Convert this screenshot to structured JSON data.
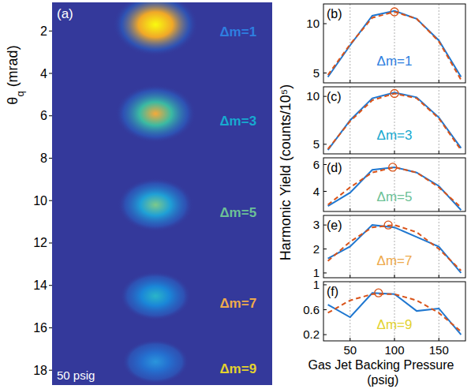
{
  "chart_data": [
    {
      "type": "image",
      "title": "(a)",
      "ylabel": "θq (mrad)",
      "ylim": [
        0.65,
        18.7
      ],
      "yticks": [
        2,
        4,
        6,
        8,
        10,
        12,
        14,
        16,
        18
      ],
      "labels": [
        "Δm=1",
        "Δm=3",
        "Δm=5",
        "Δm=7",
        "Δm=9"
      ],
      "values": [
        1.7,
        5.9,
        10.2,
        14.5,
        17.6
      ],
      "colors": [
        "#2e7fe0",
        "#17a9cf",
        "#6cc196",
        "#eeaa4c",
        "#e3d22e"
      ],
      "annotation": "50 psig"
    },
    {
      "type": "line",
      "title": "(b)",
      "annotation": "Δm=1",
      "color": "#2e7fe0",
      "x": [
        25,
        50,
        75,
        100,
        125,
        150,
        175
      ],
      "xlim": [
        20,
        180
      ],
      "xticks": [
        50,
        100,
        150
      ],
      "ylim": [
        4,
        12
      ],
      "yticks": [
        5,
        10
      ],
      "grid": true,
      "tick_labels": "y",
      "series": [
        {
          "values": [
            4.6,
            7.8,
            10.8,
            11.3,
            10.5,
            8.3,
            4.6
          ],
          "color": "#1f77d0",
          "line_style": "solid"
        },
        {
          "values": [
            4.8,
            7.9,
            10.6,
            11.2,
            10.5,
            8.2,
            4.3
          ],
          "color": "#d95319",
          "line_style": "dashed"
        }
      ],
      "peak": {
        "x": 100,
        "y": 11.2
      }
    },
    {
      "type": "line",
      "title": "(c)",
      "annotation": "Δm=3",
      "color": "#17a9cf",
      "x": [
        25,
        50,
        75,
        100,
        125,
        150,
        175
      ],
      "xlim": [
        20,
        180
      ],
      "xticks": [
        50,
        100,
        150
      ],
      "ylim": [
        4,
        11
      ],
      "yticks": [
        5,
        10
      ],
      "grid": true,
      "tick_labels": "y",
      "series": [
        {
          "values": [
            4.4,
            7.5,
            9.8,
            10.4,
            9.9,
            7.8,
            4.6
          ],
          "color": "#1f77d0",
          "line_style": "solid"
        },
        {
          "values": [
            4.5,
            7.4,
            9.6,
            10.3,
            9.8,
            7.7,
            4.4
          ],
          "color": "#d95319",
          "line_style": "dashed"
        }
      ],
      "peak": {
        "x": 100,
        "y": 10.3
      }
    },
    {
      "type": "line",
      "title": "(d)",
      "annotation": "Δm=5",
      "color": "#6cc196",
      "x": [
        25,
        50,
        75,
        100,
        125,
        150,
        175
      ],
      "xlim": [
        20,
        180
      ],
      "xticks": [
        50,
        100,
        150
      ],
      "ylim": [
        2.5,
        6.5
      ],
      "yticks": [
        4,
        6
      ],
      "grid": true,
      "tick_labels": "y",
      "ylabel": "Harmonic Yield (counts/10⁵)",
      "series": [
        {
          "values": [
            2.9,
            3.9,
            5.6,
            5.8,
            5.4,
            4.4,
            2.6
          ],
          "color": "#1f77d0",
          "line_style": "solid"
        },
        {
          "values": [
            3.0,
            4.3,
            5.4,
            5.8,
            5.4,
            4.3,
            2.8
          ],
          "color": "#d95319",
          "line_style": "dashed"
        }
      ],
      "peak": {
        "x": 98,
        "y": 5.8
      }
    },
    {
      "type": "line",
      "title": "(e)",
      "annotation": "Δm=7",
      "color": "#eeaa4c",
      "x": [
        25,
        50,
        75,
        100,
        125,
        150,
        175
      ],
      "xlim": [
        20,
        180
      ],
      "xticks": [
        50,
        100,
        150
      ],
      "ylim": [
        0.8,
        3.4
      ],
      "yticks": [
        1,
        2,
        3
      ],
      "grid": true,
      "tick_labels": "y",
      "series": [
        {
          "values": [
            1.6,
            2.1,
            3.0,
            2.9,
            2.5,
            2.1,
            1.0
          ],
          "color": "#1f77d0",
          "line_style": "solid"
        },
        {
          "values": [
            1.5,
            2.3,
            2.9,
            3.0,
            2.7,
            2.0,
            1.1
          ],
          "color": "#d95319",
          "line_style": "dashed"
        }
      ],
      "peak": {
        "x": 93,
        "y": 3.0
      }
    },
    {
      "type": "line",
      "title": "(f)",
      "annotation": "Δm=9",
      "color": "#e3d22e",
      "x": [
        25,
        50,
        75,
        100,
        125,
        150,
        175
      ],
      "xlim": [
        20,
        180
      ],
      "xticks": [
        50,
        100,
        150
      ],
      "ylim": [
        0.1,
        1.05
      ],
      "yticks": [
        0.2,
        0.6,
        1
      ],
      "grid": true,
      "tick_labels": true,
      "xlabel": "Gas Jet Backing Pressure (psig)",
      "series": [
        {
          "values": [
            0.68,
            0.48,
            0.87,
            0.85,
            0.58,
            0.62,
            0.2
          ],
          "color": "#1f77d0",
          "line_style": "solid"
        },
        {
          "values": [
            0.55,
            0.75,
            0.85,
            0.85,
            0.75,
            0.55,
            0.25
          ],
          "color": "#d95319",
          "line_style": "dashed"
        }
      ],
      "peak": {
        "x": 82,
        "y": 0.87
      }
    }
  ]
}
